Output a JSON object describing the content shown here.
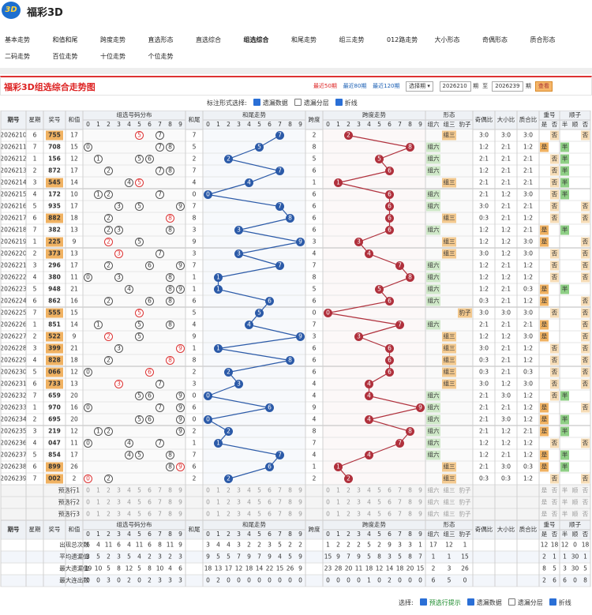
{
  "header": {
    "logo": "3D",
    "title": "福彩3D"
  },
  "nav": [
    "基本走势",
    "和值和尾",
    "跨度走势",
    "直选形态",
    "直选综合",
    "组选综合",
    "和尾走势",
    "组三走势",
    "012路走势",
    "大小形态",
    "奇偶形态",
    "质合形态",
    "二码走势",
    "百位走势",
    "十位走势",
    "个位走势"
  ],
  "toolbar": {
    "title": "福彩3D组选综合走势图",
    "recent": [
      "最近50期",
      "最近80期",
      "最近120期"
    ],
    "select": "选择期",
    "from": 2026210,
    "to_label": "至",
    "to": 2026239,
    "period": "期",
    "button": "查看"
  },
  "options": {
    "label": "标注形式选择:",
    "items": [
      "遗漏数据",
      "遗漏分层",
      "折线"
    ]
  },
  "table": {
    "headers": {
      "issue": "期号",
      "week": "星期",
      "number": "奖号",
      "sum": "和值",
      "dist": "组选号码分布",
      "tail": "和尾",
      "tail_trend": "和尾走势",
      "span": "跨度",
      "span_trend": "跨度走势",
      "form": "形态",
      "oe": "奇偶比",
      "bs": "大小比",
      "pc": "质合比",
      "repeat": "重号",
      "shun": "顺子"
    },
    "digits": [
      0,
      1,
      2,
      3,
      4,
      5,
      6,
      7,
      8,
      9
    ],
    "forms": [
      "组六",
      "组三",
      "豹子"
    ],
    "repeat_opts": [
      "是",
      "否"
    ],
    "shun_opts": [
      "半",
      "顺",
      "否"
    ],
    "rows": [
      [
        2026210,
        6,
        "755",
        17,
        7,
        2,
        "组三",
        "3:0",
        "3:0",
        "3:0",
        "否",
        "否"
      ],
      [
        2026211,
        7,
        "708",
        15,
        5,
        8,
        "组六",
        "1:2",
        "2:1",
        "1:2",
        "是",
        "半"
      ],
      [
        2026212,
        1,
        "156",
        12,
        2,
        5,
        "组六",
        "2:1",
        "2:1",
        "2:1",
        "否",
        "半"
      ],
      [
        2026213,
        2,
        "872",
        17,
        7,
        6,
        "组六",
        "1:2",
        "2:1",
        "2:1",
        "否",
        "半"
      ],
      [
        2026214,
        3,
        "545",
        14,
        4,
        1,
        "组三",
        "2:1",
        "2:1",
        "2:1",
        "否",
        "半"
      ],
      [
        2026215,
        4,
        "172",
        10,
        0,
        6,
        "组六",
        "2:1",
        "1:2",
        "3:0",
        "否",
        "半"
      ],
      [
        2026216,
        5,
        "935",
        17,
        7,
        6,
        "组六",
        "3:0",
        "2:1",
        "2:1",
        "否",
        "否"
      ],
      [
        2026217,
        6,
        "882",
        18,
        8,
        6,
        "组三",
        "0:3",
        "2:1",
        "1:2",
        "否",
        "否"
      ],
      [
        2026218,
        7,
        "382",
        13,
        3,
        6,
        "组六",
        "1:2",
        "1:2",
        "2:1",
        "是",
        "半"
      ],
      [
        2026219,
        1,
        "225",
        9,
        9,
        3,
        "组三",
        "1:2",
        "1:2",
        "3:0",
        "是",
        "否"
      ],
      [
        2026220,
        2,
        "373",
        13,
        3,
        4,
        "组三",
        "3:0",
        "1:2",
        "3:0",
        "否",
        "否"
      ],
      [
        2026221,
        3,
        "296",
        17,
        7,
        7,
        "组六",
        "1:2",
        "2:1",
        "1:2",
        "否",
        "否"
      ],
      [
        2026222,
        4,
        "380",
        11,
        1,
        8,
        "组六",
        "1:2",
        "1:2",
        "1:2",
        "否",
        "否"
      ],
      [
        2026223,
        5,
        "948",
        21,
        1,
        5,
        "组六",
        "1:2",
        "2:1",
        "0:3",
        "是",
        "半"
      ],
      [
        2026224,
        6,
        "862",
        16,
        6,
        6,
        "组六",
        "0:3",
        "2:1",
        "1:2",
        "是",
        "否"
      ],
      [
        2026225,
        7,
        "555",
        15,
        5,
        0,
        "豹子",
        "3:0",
        "3:0",
        "3:0",
        "否",
        "否"
      ],
      [
        2026226,
        1,
        "851",
        14,
        4,
        7,
        "组六",
        "2:1",
        "2:1",
        "2:1",
        "是",
        "否"
      ],
      [
        2026227,
        2,
        "522",
        9,
        9,
        3,
        "组三",
        "1:2",
        "1:2",
        "3:0",
        "是",
        "否"
      ],
      [
        2026228,
        3,
        "399",
        21,
        1,
        6,
        "组三",
        "3:0",
        "2:1",
        "1:2",
        "否",
        "否"
      ],
      [
        2026229,
        4,
        "828",
        18,
        8,
        6,
        "组三",
        "0:3",
        "2:1",
        "1:2",
        "否",
        "否"
      ],
      [
        2026230,
        5,
        "066",
        12,
        2,
        6,
        "组三",
        "0:3",
        "2:1",
        "0:3",
        "否",
        "否"
      ],
      [
        2026231,
        6,
        "733",
        13,
        3,
        4,
        "组三",
        "3:0",
        "1:2",
        "3:0",
        "否",
        "否"
      ],
      [
        2026232,
        7,
        "659",
        20,
        0,
        4,
        "组六",
        "2:1",
        "3:0",
        "1:2",
        "否",
        "半"
      ],
      [
        2026233,
        1,
        "970",
        16,
        6,
        9,
        "组六",
        "2:1",
        "2:1",
        "1:2",
        "是",
        "否"
      ],
      [
        2026234,
        2,
        "695",
        20,
        0,
        4,
        "组六",
        "2:1",
        "3:0",
        "1:2",
        "是",
        "半"
      ],
      [
        2026235,
        3,
        "219",
        12,
        2,
        8,
        "组六",
        "2:1",
        "1:2",
        "2:1",
        "是",
        "半"
      ],
      [
        2026236,
        4,
        "047",
        11,
        1,
        7,
        "组六",
        "1:2",
        "1:2",
        "1:2",
        "否",
        "否"
      ],
      [
        2026237,
        5,
        "854",
        17,
        7,
        4,
        "组六",
        "1:2",
        "2:1",
        "1:2",
        "是",
        "半"
      ],
      [
        2026238,
        6,
        "899",
        26,
        6,
        1,
        "组三",
        "2:1",
        "3:0",
        "0:3",
        "是",
        "半"
      ],
      [
        2026239,
        7,
        "002",
        2,
        2,
        2,
        "组三",
        "0:3",
        "0:3",
        "1:2",
        "否",
        "否"
      ]
    ],
    "preselect": [
      "预选行1",
      "预选行2",
      "预选行3"
    ],
    "stats": [
      {
        "label": "出现总次数",
        "dist": [
          6,
          4,
          11,
          6,
          4,
          11,
          6,
          8,
          11,
          9
        ],
        "tail_trend": [
          3,
          4,
          4,
          3,
          2,
          2,
          3,
          5,
          2,
          2
        ],
        "span_trend": [
          1,
          2,
          2,
          2,
          5,
          2,
          9,
          3,
          3,
          1
        ],
        "form": [
          17,
          12,
          1
        ],
        "repeat": [
          12,
          18
        ],
        "shun": [
          12,
          0,
          18
        ]
      },
      {
        "label": "平均遗漏值",
        "dist": [
          3,
          5,
          2,
          3,
          5,
          4,
          2,
          3,
          2,
          3
        ],
        "tail_trend": [
          9,
          5,
          5,
          7,
          9,
          7,
          9,
          4,
          5,
          9
        ],
        "span_trend": [
          15,
          9,
          7,
          9,
          5,
          8,
          3,
          5,
          8,
          7
        ],
        "form": [
          1,
          1,
          15
        ],
        "repeat": [
          2,
          1
        ],
        "shun": [
          1,
          30,
          1
        ]
      },
      {
        "label": "最大遗漏值",
        "dist": [
          19,
          10,
          5,
          8,
          12,
          5,
          8,
          10,
          4,
          6
        ],
        "tail_trend": [
          18,
          13,
          17,
          12,
          18,
          14,
          22,
          15,
          26,
          9
        ],
        "span_trend": [
          23,
          28,
          20,
          11,
          18,
          12,
          14,
          18,
          20,
          15
        ],
        "form": [
          2,
          3,
          26
        ],
        "repeat": [
          8,
          5
        ],
        "shun": [
          3,
          30,
          5
        ]
      },
      {
        "label": "最大连出数",
        "dist": [
          0,
          0,
          3,
          0,
          2,
          0,
          2,
          3,
          3,
          3
        ],
        "tail_trend": [
          0,
          2,
          0,
          0,
          0,
          0,
          0,
          0,
          0,
          0
        ],
        "span_trend": [
          0,
          0,
          0,
          0,
          1,
          0,
          2,
          0,
          0,
          0
        ],
        "form": [
          6,
          5,
          0
        ],
        "repeat": [
          2,
          6
        ],
        "shun": [
          6,
          0,
          8
        ]
      }
    ]
  },
  "footer": {
    "label": "选择:",
    "items": [
      "预选行提示",
      "遗漏数据",
      "遗漏分层",
      "折线"
    ]
  }
}
